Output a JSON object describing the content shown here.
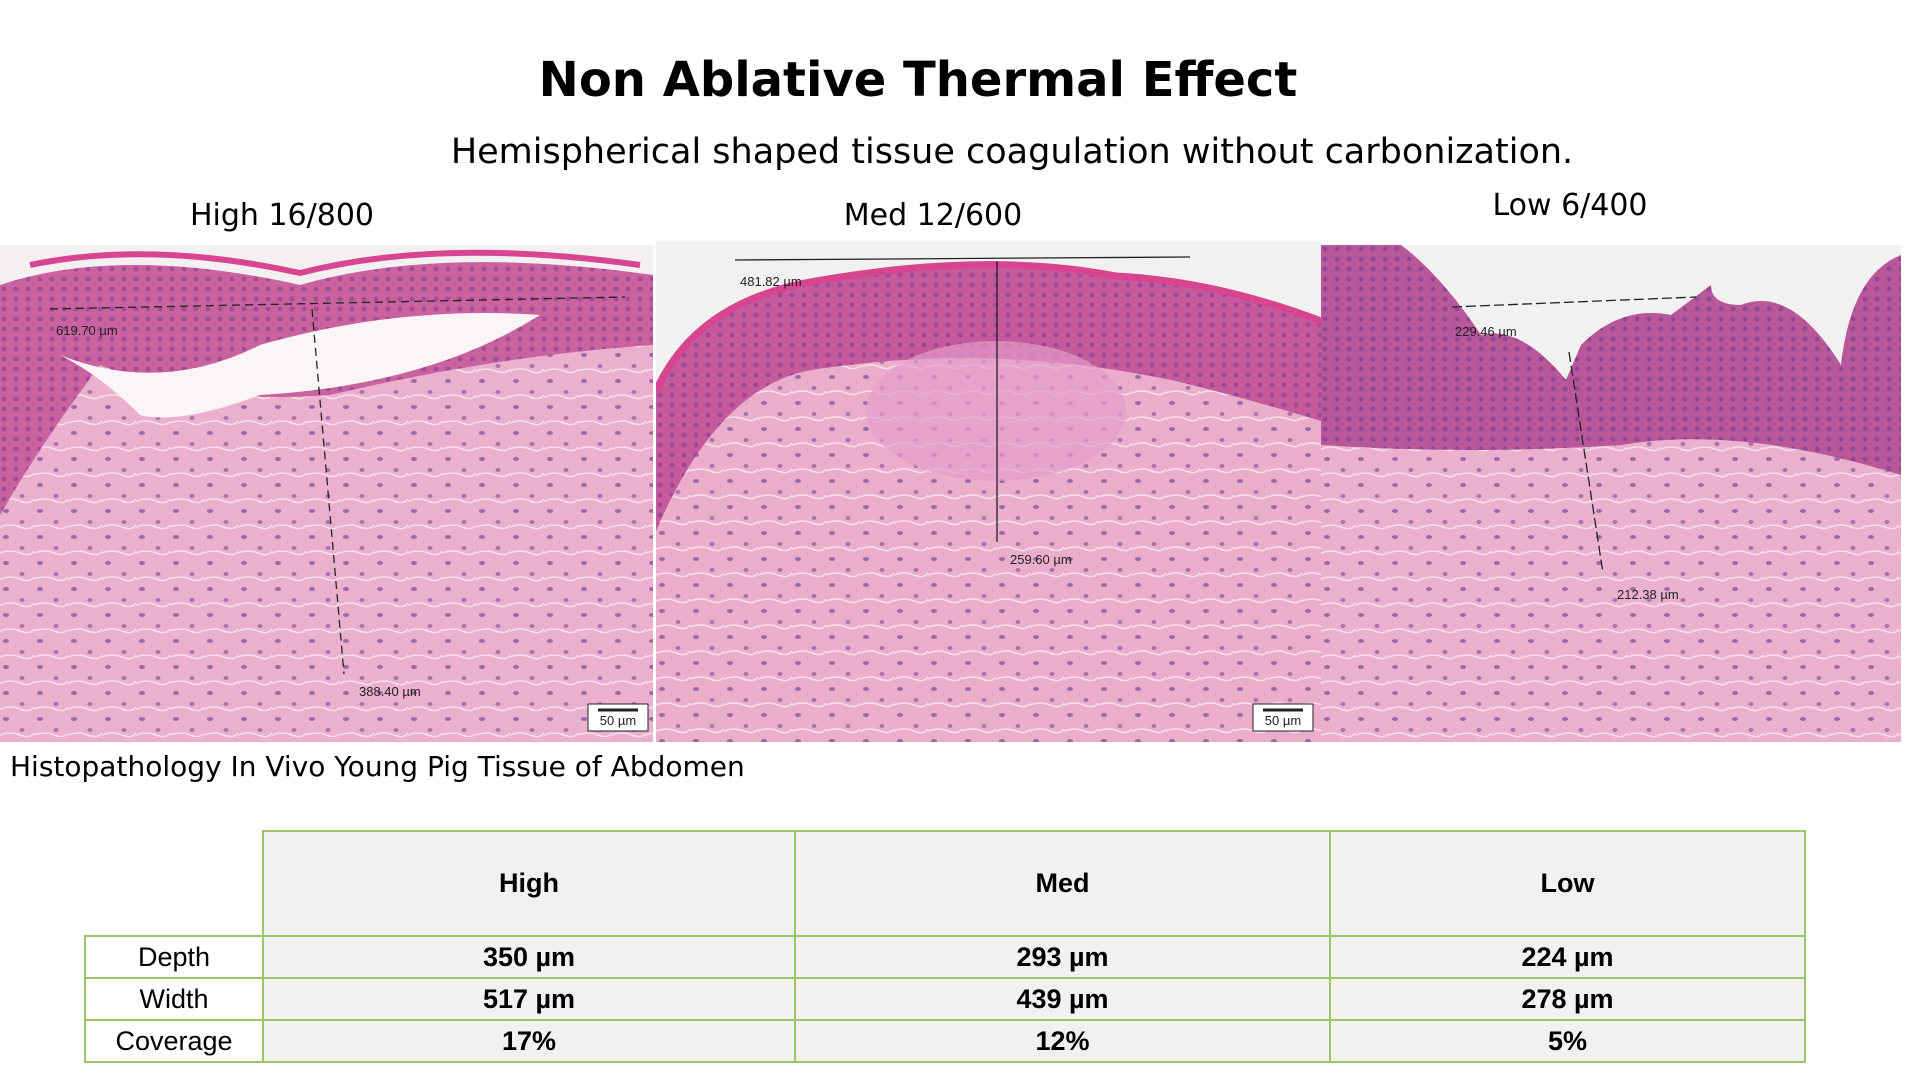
{
  "header": {
    "title": "Non Ablative Thermal Effect",
    "subtitle": "Hemispherical shaped tissue coagulation without carbonization."
  },
  "panels": [
    {
      "label": "High 16/800",
      "measurements": [
        "619.70 µm",
        "388.40 µm"
      ],
      "scale_bar": "50 µm"
    },
    {
      "label": "Med 12/600",
      "measurements": [
        "481.82 µm",
        "259.60 µm"
      ],
      "scale_bar": "50 µm"
    },
    {
      "label": "Low 6/400",
      "measurements": [
        "229.46 µm",
        "212.38 µm"
      ]
    }
  ],
  "caption": "Histopathology In Vivo Young Pig Tissue of Abdomen",
  "table": {
    "columns": [
      "High",
      "Med",
      "Low"
    ],
    "rows": [
      {
        "label": "Depth",
        "cells": [
          "350 µm",
          "293 µm",
          "224 µm"
        ]
      },
      {
        "label": "Width",
        "cells": [
          "517 µm",
          "439 µm",
          "278 µm"
        ]
      },
      {
        "label": "Coverage",
        "cells": [
          "17%",
          "12%",
          "5%"
        ]
      }
    ]
  }
}
